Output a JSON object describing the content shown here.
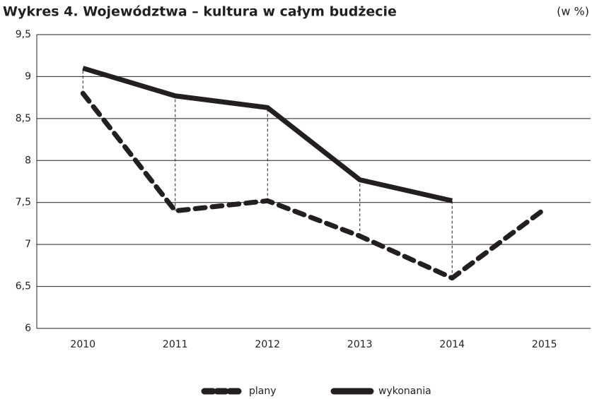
{
  "chart_data": {
    "type": "line",
    "title": "Wykres 4. Województwa – kultura w całym budżecie",
    "subtitle": "(w %)",
    "categories": [
      "2010",
      "2011",
      "2012",
      "2013",
      "2014",
      "2015"
    ],
    "series": [
      {
        "name": "plany",
        "color": "#231f20",
        "dashed": true,
        "values": [
          8.8,
          7.4,
          7.52,
          7.1,
          6.6,
          7.42
        ]
      },
      {
        "name": "wykonania",
        "color": "#231f20",
        "dashed": false,
        "values": [
          9.1,
          8.77,
          8.63,
          7.77,
          7.52,
          null
        ]
      }
    ],
    "ylim": [
      6,
      9.5
    ],
    "yticks": [
      6,
      {
        "value": 6.5,
        "label": "6,5"
      },
      7,
      {
        "value": 7.5,
        "label": "7,5"
      },
      8,
      {
        "value": 8.5,
        "label": "8,5"
      },
      9,
      {
        "value": 9.5,
        "label": "9,5"
      }
    ],
    "grid": true,
    "legend": "bottom"
  }
}
